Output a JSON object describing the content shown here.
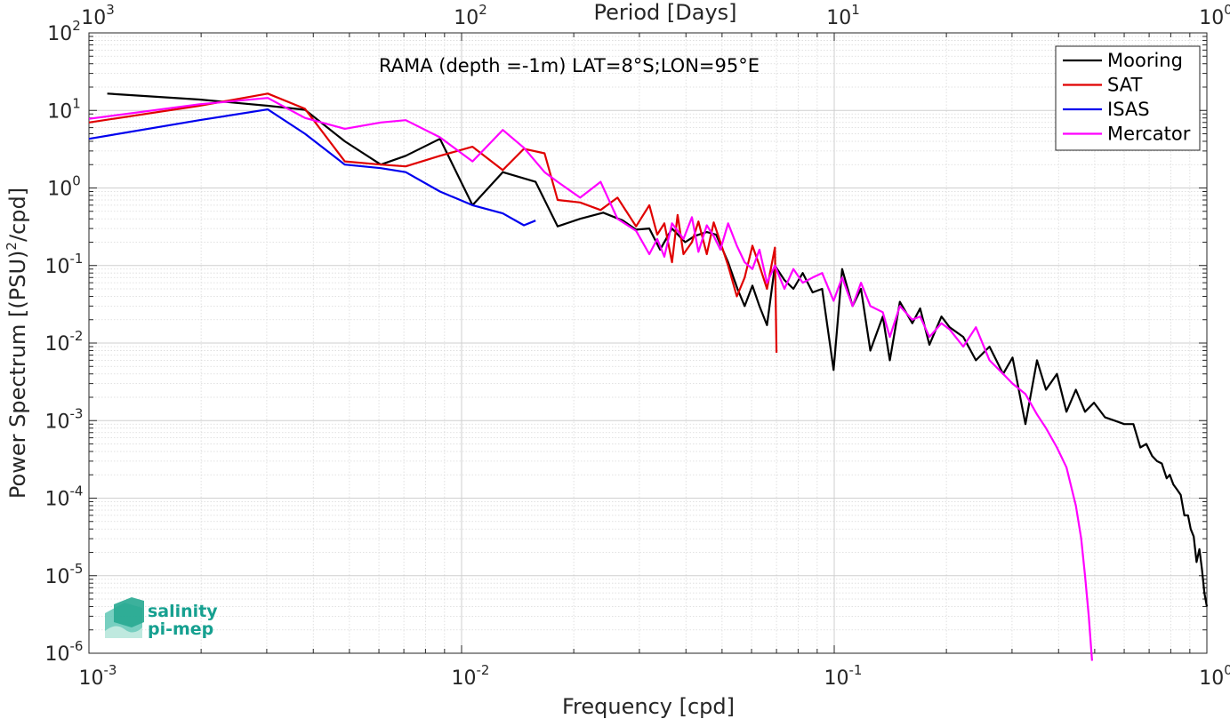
{
  "chart_data": {
    "type": "line",
    "title": "RAMA (depth =-1m) LAT=8°S;LON=95°E",
    "xlabel": "Frequency [cpd]",
    "ylabel": "Power Spectrum [(PSU)",
    "ylabel_sup": "2",
    "ylabel_tail": "/cpd]",
    "top_xlabel": "Period [Days]",
    "xscale": "log",
    "yscale": "log",
    "xlim": [
      0.001,
      1
    ],
    "ylim": [
      1e-06,
      100
    ],
    "grid": true,
    "minor_grid": true,
    "legend_position": "top-right",
    "x_ticks": [
      {
        "base": "10",
        "exp": "-3",
        "value": 0.001
      },
      {
        "base": "10",
        "exp": "-2",
        "value": 0.01
      },
      {
        "base": "10",
        "exp": "-1",
        "value": 0.1
      },
      {
        "base": "10",
        "exp": "0",
        "value": 1
      }
    ],
    "y_ticks": [
      {
        "base": "10",
        "exp": "-6",
        "value": 1e-06
      },
      {
        "base": "10",
        "exp": "-5",
        "value": 1e-05
      },
      {
        "base": "10",
        "exp": "-4",
        "value": 0.0001
      },
      {
        "base": "10",
        "exp": "-3",
        "value": 0.001
      },
      {
        "base": "10",
        "exp": "-2",
        "value": 0.01
      },
      {
        "base": "10",
        "exp": "-1",
        "value": 0.1
      },
      {
        "base": "10",
        "exp": "0",
        "value": 1
      },
      {
        "base": "10",
        "exp": "1",
        "value": 10
      },
      {
        "base": "10",
        "exp": "2",
        "value": 100
      }
    ],
    "top_ticks": [
      {
        "base": "10",
        "exp": "3",
        "value": 0.001
      },
      {
        "base": "10",
        "exp": "2",
        "value": 0.01
      },
      {
        "base": "10",
        "exp": "1",
        "value": 0.1
      },
      {
        "base": "10",
        "exp": "0",
        "value": 1
      }
    ],
    "series": [
      {
        "name": "Mooring",
        "color": "#000000",
        "x": [
          0.00112,
          0.00198,
          0.00302,
          0.0038,
          0.00486,
          0.00607,
          0.00708,
          0.00875,
          0.0107,
          0.0129,
          0.0158,
          0.0181,
          0.0208,
          0.024,
          0.0271,
          0.0294,
          0.0319,
          0.0341,
          0.0367,
          0.0398,
          0.0422,
          0.0455,
          0.0482,
          0.0519,
          0.055,
          0.0575,
          0.0603,
          0.063,
          0.066,
          0.0693,
          0.0735,
          0.0777,
          0.0823,
          0.0875,
          0.0928,
          0.0996,
          0.105,
          0.112,
          0.118,
          0.125,
          0.135,
          0.141,
          0.15,
          0.162,
          0.17,
          0.18,
          0.194,
          0.204,
          0.222,
          0.24,
          0.261,
          0.284,
          0.301,
          0.326,
          0.35,
          0.37,
          0.396,
          0.42,
          0.445,
          0.471,
          0.498,
          0.533,
          0.566,
          0.6,
          0.635,
          0.663,
          0.688,
          0.713,
          0.735,
          0.757,
          0.78,
          0.795,
          0.813,
          0.831,
          0.851,
          0.87,
          0.89,
          0.905,
          0.922,
          0.938,
          0.955,
          0.97,
          0.985,
          1.0
        ],
        "y": [
          16.5,
          13.8,
          11.5,
          10.2,
          4.0,
          2.0,
          2.6,
          4.3,
          0.6,
          1.6,
          1.2,
          0.32,
          0.4,
          0.48,
          0.38,
          0.29,
          0.3,
          0.16,
          0.3,
          0.2,
          0.24,
          0.27,
          0.25,
          0.11,
          0.05,
          0.03,
          0.055,
          0.03,
          0.017,
          0.1,
          0.065,
          0.05,
          0.08,
          0.045,
          0.05,
          0.0045,
          0.09,
          0.03,
          0.05,
          0.008,
          0.022,
          0.006,
          0.034,
          0.018,
          0.028,
          0.0095,
          0.022,
          0.016,
          0.012,
          0.006,
          0.009,
          0.004,
          0.0065,
          0.0009,
          0.006,
          0.0025,
          0.004,
          0.0013,
          0.0025,
          0.0013,
          0.0017,
          0.0011,
          0.001,
          0.0009,
          0.0009,
          0.00045,
          0.0005,
          0.00035,
          0.0003,
          0.00028,
          0.00018,
          0.0002,
          0.00015,
          0.00013,
          0.00011,
          6e-05,
          6e-05,
          4e-05,
          3.2e-05,
          1.5e-05,
          2.2e-05,
          1.2e-05,
          6e-06,
          4e-06
        ]
      },
      {
        "name": "SAT",
        "color": "#e00000",
        "x": [
          0.001,
          0.00198,
          0.00302,
          0.0038,
          0.00486,
          0.00607,
          0.00708,
          0.00875,
          0.0107,
          0.0129,
          0.0147,
          0.0167,
          0.0181,
          0.0208,
          0.0236,
          0.0262,
          0.0294,
          0.0319,
          0.0335,
          0.035,
          0.0367,
          0.038,
          0.0394,
          0.0415,
          0.0432,
          0.0455,
          0.0475,
          0.0495,
          0.0519,
          0.0548,
          0.0575,
          0.0603,
          0.063,
          0.066,
          0.0693,
          0.07
        ],
        "y": [
          7.0,
          11.5,
          16.5,
          10.5,
          2.2,
          2.0,
          1.9,
          2.6,
          3.4,
          1.7,
          3.2,
          2.8,
          0.7,
          0.65,
          0.52,
          0.75,
          0.32,
          0.6,
          0.25,
          0.35,
          0.11,
          0.45,
          0.14,
          0.2,
          0.37,
          0.14,
          0.36,
          0.2,
          0.1,
          0.04,
          0.07,
          0.18,
          0.1,
          0.05,
          0.17,
          0.0075
        ]
      },
      {
        "name": "ISAS",
        "color": "#0000ee",
        "x": [
          0.001,
          0.00198,
          0.00302,
          0.0038,
          0.00486,
          0.00607,
          0.00708,
          0.00875,
          0.0107,
          0.0129,
          0.0147,
          0.0158
        ],
        "y": [
          4.3,
          7.5,
          10.3,
          5.0,
          2.0,
          1.8,
          1.6,
          0.9,
          0.6,
          0.47,
          0.33,
          0.38
        ]
      },
      {
        "name": "Mercator",
        "color": "#ff00ff",
        "x": [
          0.001,
          0.00198,
          0.00302,
          0.0038,
          0.00486,
          0.00607,
          0.00708,
          0.00875,
          0.0107,
          0.0129,
          0.0147,
          0.0167,
          0.0181,
          0.0208,
          0.0236,
          0.0262,
          0.0294,
          0.0319,
          0.0335,
          0.035,
          0.0367,
          0.038,
          0.0394,
          0.0415,
          0.0432,
          0.0455,
          0.0475,
          0.0495,
          0.0519,
          0.0548,
          0.0575,
          0.0603,
          0.063,
          0.066,
          0.0693,
          0.0735,
          0.0777,
          0.0823,
          0.0875,
          0.0928,
          0.0996,
          0.105,
          0.112,
          0.118,
          0.125,
          0.135,
          0.141,
          0.15,
          0.162,
          0.17,
          0.18,
          0.194,
          0.204,
          0.222,
          0.24,
          0.261,
          0.284,
          0.301,
          0.326,
          0.35,
          0.37,
          0.396,
          0.42,
          0.445,
          0.46,
          0.471,
          0.482,
          0.492
        ],
        "y": [
          7.8,
          12.0,
          14.5,
          8.0,
          5.8,
          7.0,
          7.5,
          4.5,
          2.2,
          5.6,
          3.3,
          1.6,
          1.2,
          0.75,
          1.2,
          0.4,
          0.28,
          0.14,
          0.22,
          0.13,
          0.35,
          0.28,
          0.22,
          0.42,
          0.15,
          0.33,
          0.24,
          0.16,
          0.35,
          0.18,
          0.11,
          0.09,
          0.16,
          0.06,
          0.1,
          0.05,
          0.09,
          0.06,
          0.07,
          0.08,
          0.035,
          0.07,
          0.03,
          0.06,
          0.03,
          0.025,
          0.012,
          0.03,
          0.02,
          0.022,
          0.012,
          0.018,
          0.015,
          0.009,
          0.016,
          0.006,
          0.004,
          0.003,
          0.0022,
          0.0012,
          0.0008,
          0.00045,
          0.00025,
          8e-05,
          3e-05,
          1e-05,
          3e-06,
          8e-07
        ]
      }
    ]
  },
  "logo": {
    "line1": "salinity",
    "line2": "pi-mep"
  }
}
